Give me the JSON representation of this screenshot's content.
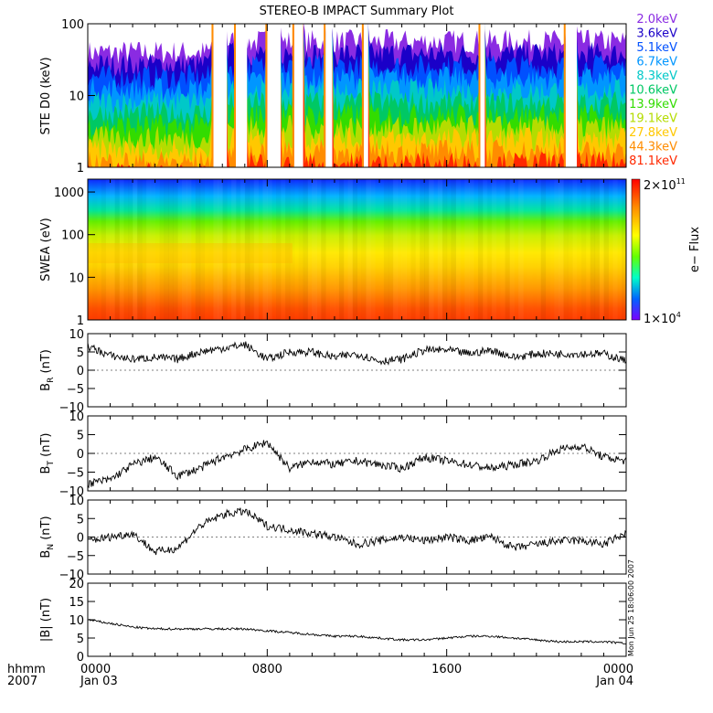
{
  "chart_data": [
    {
      "type": "line",
      "panel": "ste",
      "title": "STEREO-B IMPACT Summary Plot",
      "ylabel": "STE D0 (keV)",
      "yscale": "log",
      "ylim": [
        1,
        100
      ],
      "yticks": [
        {
          "v": 1,
          "label": "1"
        },
        {
          "v": 10,
          "label": "10"
        },
        {
          "v": 100,
          "label": "100"
        }
      ],
      "legend": [
        {
          "label": "2.0keV",
          "color": "#8a2be2"
        },
        {
          "label": "3.6keV",
          "color": "#1a00c8"
        },
        {
          "label": "5.1keV",
          "color": "#0050ff"
        },
        {
          "label": "6.7keV",
          "color": "#0096ff"
        },
        {
          "label": "8.3keV",
          "color": "#00c8c8"
        },
        {
          "label": "10.6keV",
          "color": "#00c864"
        },
        {
          "label": "13.9keV",
          "color": "#32dc00"
        },
        {
          "label": "19.1keV",
          "color": "#b4dc00"
        },
        {
          "label": "27.8keV",
          "color": "#ffc800"
        },
        {
          "label": "44.3keV",
          "color": "#ff8c00"
        },
        {
          "label": "81.1keV",
          "color": "#ff2800"
        }
      ]
    },
    {
      "type": "heatmap",
      "panel": "swea",
      "ylabel": "SWEA (eV)",
      "yscale": "log",
      "ylim": [
        1,
        2000
      ],
      "yticks": [
        {
          "v": 1,
          "label": "1"
        },
        {
          "v": 10,
          "label": "10"
        },
        {
          "v": 100,
          "label": "100"
        },
        {
          "v": 1000,
          "label": "1000"
        }
      ],
      "colorbar": {
        "label": "e− Flux",
        "max_base": "2×10",
        "max_exp": "11",
        "min_base": "1×10",
        "min_exp": "4"
      }
    },
    {
      "type": "line",
      "panel": "br",
      "ylabel_base": "B",
      "ylabel_sub": "R",
      "ylabel_unit": " (nT)",
      "ylim": [
        -10,
        10
      ],
      "yticks": [
        {
          "v": 10,
          "label": "10"
        },
        {
          "v": 5,
          "label": "5"
        },
        {
          "v": 0,
          "label": "0"
        },
        {
          "v": -5,
          "label": "−5"
        },
        {
          "v": -10,
          "label": "−10"
        }
      ],
      "x_hours": [
        0,
        1,
        2,
        3,
        4,
        5,
        6,
        7,
        8,
        9,
        10,
        11,
        12,
        13,
        14,
        15,
        16,
        17,
        18,
        19,
        20,
        21,
        22,
        23,
        24
      ],
      "values": [
        6.5,
        4,
        3,
        3.5,
        3,
        5,
        6,
        7,
        3,
        5,
        5,
        3.5,
        4.5,
        2.5,
        3,
        5.5,
        5.5,
        4.5,
        5.5,
        3.5,
        4.5,
        4.5,
        4.5,
        4.5,
        2.5
      ]
    },
    {
      "type": "line",
      "panel": "bt",
      "ylabel_base": "B",
      "ylabel_sub": "T",
      "ylabel_unit": " (nT)",
      "ylim": [
        -10,
        10
      ],
      "yticks": [
        {
          "v": 10,
          "label": "10"
        },
        {
          "v": 5,
          "label": "5"
        },
        {
          "v": 0,
          "label": "0"
        },
        {
          "v": -5,
          "label": "−5"
        },
        {
          "v": -10,
          "label": "−10"
        }
      ],
      "x_hours": [
        0,
        1,
        2,
        3,
        4,
        5,
        6,
        7,
        8,
        9,
        10,
        11,
        12,
        13,
        14,
        15,
        16,
        17,
        18,
        19,
        20,
        21,
        22,
        23,
        24
      ],
      "values": [
        -8,
        -7,
        -3,
        -1,
        -6,
        -4,
        -1,
        1,
        3,
        -4,
        -2,
        -3,
        -2,
        -3,
        -4,
        -1,
        -2,
        -3,
        -4,
        -3,
        -2,
        1,
        2,
        -1,
        -2
      ]
    },
    {
      "type": "line",
      "panel": "bn",
      "ylabel_base": "B",
      "ylabel_sub": "N",
      "ylabel_unit": " (nT)",
      "ylim": [
        -10,
        10
      ],
      "yticks": [
        {
          "v": 10,
          "label": "10"
        },
        {
          "v": 5,
          "label": "5"
        },
        {
          "v": 0,
          "label": "0"
        },
        {
          "v": -5,
          "label": "−5"
        },
        {
          "v": -10,
          "label": "−10"
        }
      ],
      "x_hours": [
        0,
        1,
        2,
        3,
        4,
        5,
        6,
        7,
        8,
        9,
        10,
        11,
        12,
        13,
        14,
        15,
        16,
        17,
        18,
        19,
        20,
        21,
        22,
        23,
        24
      ],
      "values": [
        -1,
        0,
        1,
        -4,
        -3,
        3,
        6,
        7,
        3,
        2,
        1,
        0,
        -2,
        -1,
        0,
        -1,
        0,
        -1,
        0,
        -3,
        -2,
        -1,
        -1,
        -2,
        1
      ]
    },
    {
      "type": "line",
      "panel": "bmag",
      "ylabel": "|B| (nT)",
      "ylim": [
        0,
        20
      ],
      "yticks": [
        {
          "v": 20,
          "label": "20"
        },
        {
          "v": 15,
          "label": "15"
        },
        {
          "v": 10,
          "label": "10"
        },
        {
          "v": 5,
          "label": "5"
        },
        {
          "v": 0,
          "label": "0"
        }
      ],
      "x_hours": [
        0,
        1,
        2,
        3,
        4,
        5,
        6,
        7,
        8,
        9,
        10,
        11,
        12,
        13,
        14,
        15,
        16,
        17,
        18,
        19,
        20,
        21,
        22,
        23,
        24
      ],
      "values": [
        10,
        9,
        8,
        7.5,
        7.5,
        7.5,
        7.5,
        7.5,
        7,
        6.5,
        6,
        5.5,
        5.5,
        5,
        4.5,
        4.5,
        5,
        5.5,
        5.5,
        5,
        4.5,
        4,
        4,
        4,
        3.5
      ]
    }
  ],
  "xaxis": {
    "row1_label": "hhmm",
    "row2_label": "2007",
    "ticks": [
      {
        "hour": 0,
        "line1": "0000",
        "line2": "Jan 03"
      },
      {
        "hour": 8,
        "line1": "0800",
        "line2": ""
      },
      {
        "hour": 16,
        "line1": "1600",
        "line2": ""
      },
      {
        "hour": 24,
        "line1": "0000",
        "line2": "Jan 04"
      }
    ]
  },
  "stamp": "Mon Jun 25 18:06:00 2007"
}
